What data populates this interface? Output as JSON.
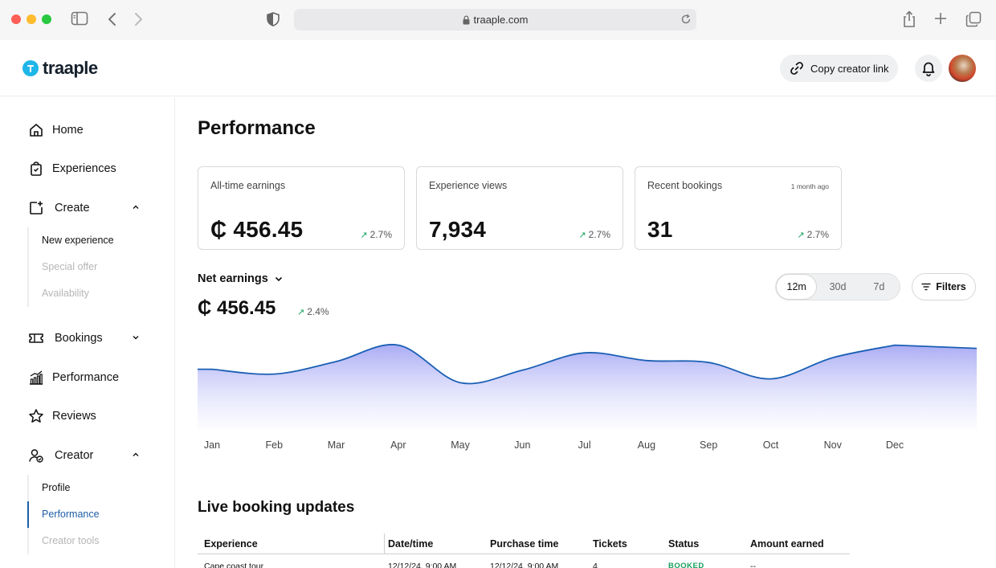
{
  "browser": {
    "url": "traaple.com"
  },
  "header": {
    "brand": "traaple",
    "copy_link_label": "Copy creator link"
  },
  "sidebar": {
    "home": "Home",
    "experiences": "Experiences",
    "create": "Create",
    "create_sub": [
      "New experience",
      "Special offer",
      "Availability"
    ],
    "bookings": "Bookings",
    "performance": "Performance",
    "reviews": "Reviews",
    "creator": "Creator",
    "creator_sub": [
      "Profile",
      "Performance",
      "Creator tools"
    ]
  },
  "main": {
    "title": "Performance",
    "cards": [
      {
        "label": "All-time earnings",
        "value": "₵ 456.45",
        "delta": "2.7%",
        "stamp": ""
      },
      {
        "label": "Experience views",
        "value": "7,934",
        "delta": "2.7%",
        "stamp": ""
      },
      {
        "label": "Recent bookings",
        "value": "31",
        "delta": "2.7%",
        "stamp": "1 month ago"
      }
    ],
    "net": {
      "label": "Net earnings",
      "value": "₵ 456.45",
      "delta": "2.4%"
    },
    "range_tabs": [
      "12m",
      "30d",
      "7d"
    ],
    "selected_range": "12m",
    "filters_label": "Filters",
    "live_title": "Live booking updates",
    "table": {
      "columns": [
        "Experience",
        "Date/time",
        "Purchase time",
        "Tickets",
        "Status",
        "Amount earned"
      ],
      "rows": [
        [
          "Cape coast tour",
          "12/12/24, 9:00 AM",
          "12/12/24, 9:00 AM",
          "4",
          "BOOKED",
          "--"
        ]
      ]
    }
  },
  "colors": {
    "accent": "#1f5ea8",
    "brand": "#1fb6e8",
    "positive": "#17a05d",
    "line": "#1a5fb4"
  },
  "chart_data": {
    "type": "area",
    "categories": [
      "Jan",
      "Feb",
      "Mar",
      "Apr",
      "May",
      "Jun",
      "Jul",
      "Aug",
      "Sep",
      "Oct",
      "Nov",
      "Dec"
    ],
    "series": [
      {
        "values": [
          57,
          52,
          65,
          82,
          43,
          56,
          74,
          66,
          64,
          47,
          69,
          82
        ]
      }
    ],
    "ylim": [
      0,
      100
    ],
    "grid": false,
    "legend": "none"
  }
}
